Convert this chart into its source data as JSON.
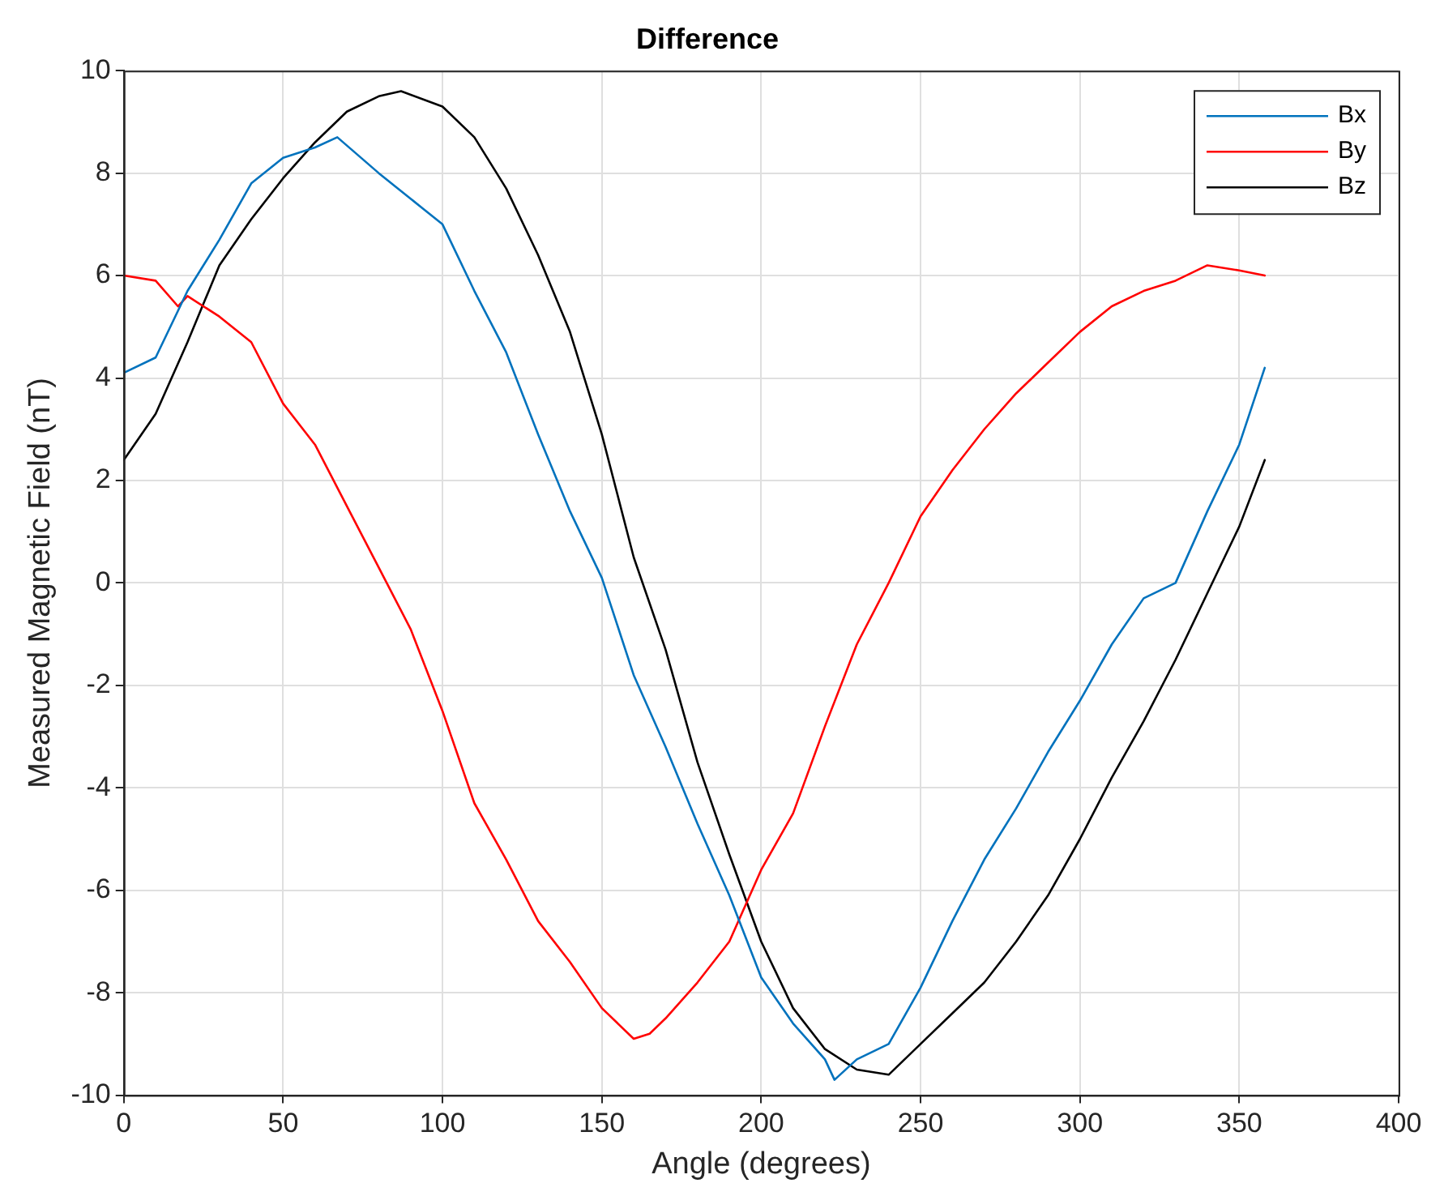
{
  "chart_data": {
    "type": "line",
    "title": "Difference",
    "xlabel": "Angle (degrees)",
    "ylabel": "Measured Magnetic Field (nT)",
    "xlim": [
      0,
      400
    ],
    "xticks": [
      0,
      50,
      100,
      150,
      200,
      250,
      300,
      350,
      400
    ],
    "ylim": [
      -10,
      10
    ],
    "yticks": [
      -10,
      -8,
      -6,
      -4,
      -2,
      0,
      2,
      4,
      6,
      8,
      10
    ],
    "grid": true,
    "legend": "top right",
    "marker": "none",
    "line_style": "solid",
    "series": [
      {
        "name": "Bx",
        "color": "#0072bd",
        "x": [
          0,
          10,
          20,
          30,
          40,
          50,
          60,
          67,
          80,
          90,
          100,
          110,
          120,
          130,
          140,
          150,
          160,
          170,
          180,
          190,
          200,
          210,
          220,
          223,
          230,
          240,
          250,
          260,
          270,
          280,
          290,
          300,
          310,
          320,
          330,
          340,
          350,
          358
        ],
        "values": [
          4.1,
          4.4,
          5.7,
          6.7,
          7.8,
          8.3,
          8.5,
          8.7,
          8.0,
          7.5,
          7.0,
          5.7,
          4.5,
          2.9,
          1.4,
          0.1,
          -1.8,
          -3.2,
          -4.7,
          -6.1,
          -7.7,
          -8.6,
          -9.3,
          -9.7,
          -9.3,
          -9.0,
          -7.9,
          -6.6,
          -5.4,
          -4.4,
          -3.3,
          -2.3,
          -1.2,
          -0.3,
          0.0,
          1.4,
          2.7,
          4.2
        ]
      },
      {
        "name": "By",
        "color": "#ff0000",
        "x": [
          0,
          10,
          17,
          20,
          30,
          40,
          50,
          60,
          70,
          80,
          90,
          100,
          110,
          120,
          130,
          140,
          150,
          160,
          165,
          170,
          180,
          190,
          200,
          210,
          220,
          230,
          240,
          250,
          260,
          270,
          280,
          290,
          300,
          310,
          320,
          330,
          340,
          350,
          358
        ],
        "values": [
          6.0,
          5.9,
          5.4,
          5.6,
          5.2,
          4.7,
          3.5,
          2.7,
          1.5,
          0.3,
          -0.9,
          -2.5,
          -4.3,
          -5.4,
          -6.6,
          -7.4,
          -8.3,
          -8.9,
          -8.8,
          -8.5,
          -7.8,
          -7.0,
          -5.6,
          -4.5,
          -2.8,
          -1.2,
          0.0,
          1.3,
          2.2,
          3.0,
          3.7,
          4.3,
          4.9,
          5.4,
          5.7,
          5.9,
          6.2,
          6.1,
          6.0
        ]
      },
      {
        "name": "Bz",
        "color": "#000000",
        "x": [
          0,
          10,
          20,
          30,
          40,
          50,
          60,
          70,
          80,
          87,
          100,
          110,
          120,
          130,
          140,
          150,
          160,
          170,
          180,
          190,
          200,
          210,
          220,
          230,
          240,
          250,
          260,
          270,
          280,
          290,
          300,
          310,
          320,
          330,
          340,
          350,
          358
        ],
        "values": [
          2.4,
          3.3,
          4.7,
          6.2,
          7.1,
          7.9,
          8.6,
          9.2,
          9.5,
          9.6,
          9.3,
          8.7,
          7.7,
          6.4,
          4.9,
          2.9,
          0.5,
          -1.3,
          -3.5,
          -5.3,
          -7.0,
          -8.3,
          -9.1,
          -9.5,
          -9.6,
          -9.0,
          -8.4,
          -7.8,
          -7.0,
          -6.1,
          -5.0,
          -3.8,
          -2.7,
          -1.5,
          -0.2,
          1.1,
          2.4
        ]
      }
    ]
  }
}
